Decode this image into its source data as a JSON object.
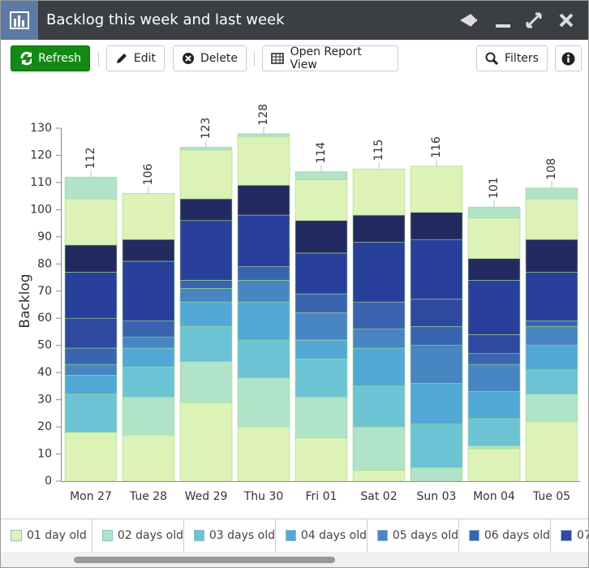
{
  "window": {
    "title": "Backlog this week and last week"
  },
  "toolbar": {
    "refresh": "Refresh",
    "edit": "Edit",
    "delete": "Delete",
    "open_report_view": "Open Report View",
    "filters": "Filters"
  },
  "chart_data": {
    "type": "stacked-bar",
    "y_label": "Backlog",
    "categories": [
      "Mon 27",
      "Tue 28",
      "Wed 29",
      "Thu 30",
      "Fri 01",
      "Sat 02",
      "Sun 03",
      "Mon 04",
      "Tue 05"
    ],
    "totals": [
      112,
      106,
      123,
      128,
      114,
      115,
      116,
      101,
      108
    ],
    "ylim": [
      0,
      130
    ],
    "yticks": [
      0,
      10,
      20,
      30,
      40,
      50,
      60,
      70,
      80,
      90,
      100,
      110,
      120,
      130
    ],
    "series": [
      {
        "name": "01 day old",
        "color": "#dcf2b6",
        "values": [
          18,
          17,
          29,
          20,
          16,
          4,
          0,
          12,
          22
        ]
      },
      {
        "name": "02 days old",
        "color": "#b0e3c8",
        "values": [
          0,
          14,
          15,
          18,
          15,
          16,
          5,
          1,
          10
        ]
      },
      {
        "name": "03 days old",
        "color": "#6cc3d3",
        "values": [
          14,
          11,
          13,
          14,
          14,
          15,
          16,
          10,
          9
        ]
      },
      {
        "name": "04 days old",
        "color": "#52a9d5",
        "values": [
          7,
          7,
          9,
          14,
          7,
          14,
          15,
          10,
          9
        ]
      },
      {
        "name": "05 days old",
        "color": "#4786c2",
        "values": [
          4,
          4,
          5,
          8,
          10,
          7,
          14,
          10,
          7
        ]
      },
      {
        "name": "06 days old",
        "color": "#3b64b0",
        "values": [
          6,
          6,
          3,
          5,
          7,
          10,
          7,
          4,
          2
        ]
      },
      {
        "name": "07",
        "color": "#2f48a0",
        "values": [
          11,
          0,
          0,
          0,
          0,
          0,
          10,
          7,
          0
        ]
      },
      {
        "color": "#28409b",
        "values": [
          17,
          22,
          22,
          19,
          15,
          22,
          22,
          20,
          18
        ]
      },
      {
        "color": "#232a61",
        "values": [
          10,
          8,
          8,
          11,
          12,
          10,
          10,
          8,
          12
        ]
      },
      {
        "color": "#dcf2b6",
        "values": [
          17,
          17,
          18,
          18,
          15,
          17,
          17,
          15,
          15
        ]
      },
      {
        "color": "#b0e3c8",
        "values": [
          8,
          0,
          1,
          1,
          3,
          0,
          0,
          4,
          4
        ]
      }
    ]
  }
}
